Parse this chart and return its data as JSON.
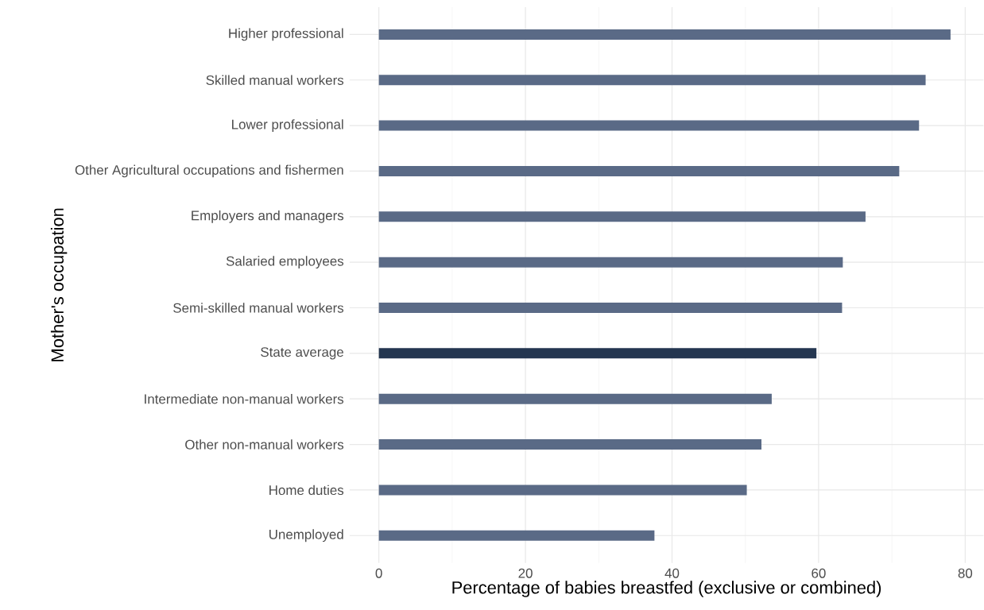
{
  "chart_data": {
    "type": "bar",
    "orientation": "horizontal",
    "xlabel": "Percentage of babies breastfed (exclusive or combined)",
    "ylabel": "Mother's occupation",
    "categories": [
      "Higher professional",
      "Skilled manual workers",
      "Lower professional",
      "Other Agricultural occupations and fishermen",
      "Employers and managers",
      "Salaried employees",
      "Semi-skilled manual workers",
      "State average",
      "Intermediate non-manual workers",
      "Other non-manual workers",
      "Home duties",
      "Unemployed"
    ],
    "values": [
      78.0,
      74.6,
      73.7,
      71.0,
      66.4,
      63.3,
      63.2,
      59.7,
      53.6,
      52.2,
      50.2,
      37.6
    ],
    "colors": [
      "#5a6a86",
      "#5a6a86",
      "#5a6a86",
      "#5a6a86",
      "#5a6a86",
      "#5a6a86",
      "#5a6a86",
      "#243650",
      "#5a6a86",
      "#5a6a86",
      "#5a6a86",
      "#5a6a86"
    ],
    "xlim": [
      -4,
      82.5
    ],
    "xticks": [
      0,
      20,
      40,
      60,
      80
    ],
    "grid": true
  }
}
